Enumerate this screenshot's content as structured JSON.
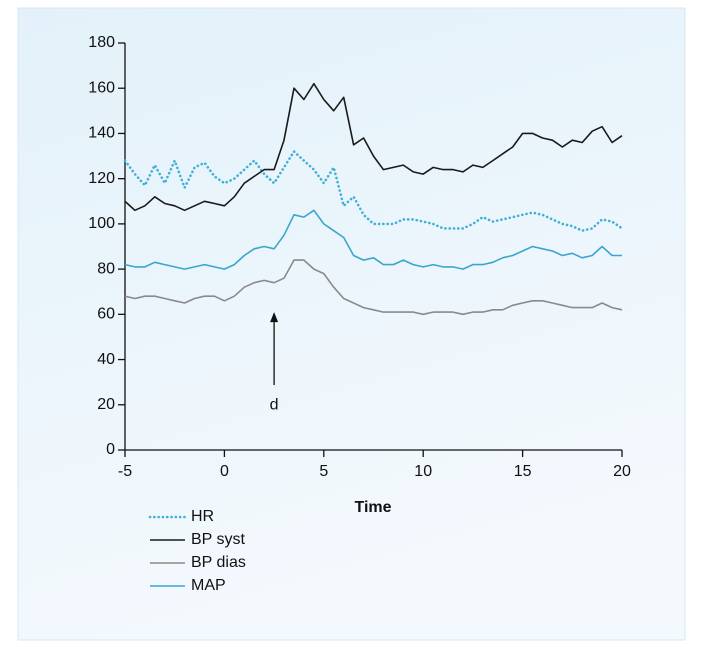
{
  "chart_data": {
    "type": "line",
    "x_label": "Time",
    "x": [
      -5,
      -4.5,
      -4,
      -3.5,
      -3,
      -2.5,
      -2,
      -1.5,
      -1,
      -0.5,
      0,
      0.5,
      1,
      1.5,
      2,
      2.5,
      3,
      3.5,
      4,
      4.5,
      5,
      5.5,
      6,
      6.5,
      7,
      7.5,
      8,
      8.5,
      9,
      9.5,
      10,
      10.5,
      11,
      11.5,
      12,
      12.5,
      13,
      13.5,
      14,
      14.5,
      15,
      15.5,
      16,
      16.5,
      17,
      17.5,
      18,
      18.5,
      19,
      19.5,
      20
    ],
    "series": [
      {
        "name": "HR",
        "color": "#3fb0d6",
        "line_style": "dotted",
        "values": [
          128,
          122,
          117,
          126,
          118,
          128,
          116,
          125,
          127,
          121,
          118,
          120,
          124,
          128,
          122,
          118,
          125,
          132,
          128,
          124,
          118,
          125,
          108,
          112,
          104,
          100,
          100,
          100,
          102,
          102,
          101,
          100,
          98,
          98,
          98,
          100,
          103,
          101,
          102,
          103,
          104,
          105,
          104,
          102,
          100,
          99,
          97,
          98,
          102,
          101,
          98
        ]
      },
      {
        "name": "BP syst",
        "color": "#1a1a1a",
        "line_style": "solid",
        "values": [
          110,
          106,
          108,
          112,
          109,
          108,
          106,
          108,
          110,
          109,
          108,
          112,
          118,
          121,
          124,
          124,
          137,
          160,
          155,
          162,
          155,
          150,
          156,
          135,
          138,
          130,
          124,
          125,
          126,
          123,
          122,
          125,
          124,
          124,
          123,
          126,
          125,
          128,
          131,
          134,
          140,
          140,
          138,
          137,
          134,
          137,
          136,
          141,
          143,
          136,
          139
        ]
      },
      {
        "name": "BP dias",
        "color": "#8a8a8a",
        "line_style": "solid",
        "values": [
          68,
          67,
          68,
          68,
          67,
          66,
          65,
          67,
          68,
          68,
          66,
          68,
          72,
          74,
          75,
          74,
          76,
          84,
          84,
          80,
          78,
          72,
          67,
          65,
          63,
          62,
          61,
          61,
          61,
          61,
          60,
          61,
          61,
          61,
          60,
          61,
          61,
          62,
          62,
          64,
          65,
          66,
          66,
          65,
          64,
          63,
          63,
          63,
          65,
          63,
          62
        ]
      },
      {
        "name": "MAP",
        "color": "#3aa6cc",
        "line_style": "solid",
        "values": [
          82,
          81,
          81,
          83,
          82,
          81,
          80,
          81,
          82,
          81,
          80,
          82,
          86,
          89,
          90,
          89,
          95,
          104,
          103,
          106,
          100,
          97,
          94,
          86,
          84,
          85,
          82,
          82,
          84,
          82,
          81,
          82,
          81,
          81,
          80,
          82,
          82,
          83,
          85,
          86,
          88,
          90,
          89,
          88,
          86,
          87,
          85,
          86,
          90,
          86,
          86
        ]
      }
    ],
    "xlim": [
      -5,
      20
    ],
    "xticks": [
      -5,
      0,
      5,
      10,
      15,
      20
    ],
    "ylim": [
      0,
      180
    ],
    "yticks": [
      0,
      20,
      40,
      60,
      80,
      100,
      120,
      140,
      160,
      180
    ],
    "annotations": [
      {
        "text": "d",
        "x": 2.5,
        "y": 61
      }
    ]
  }
}
